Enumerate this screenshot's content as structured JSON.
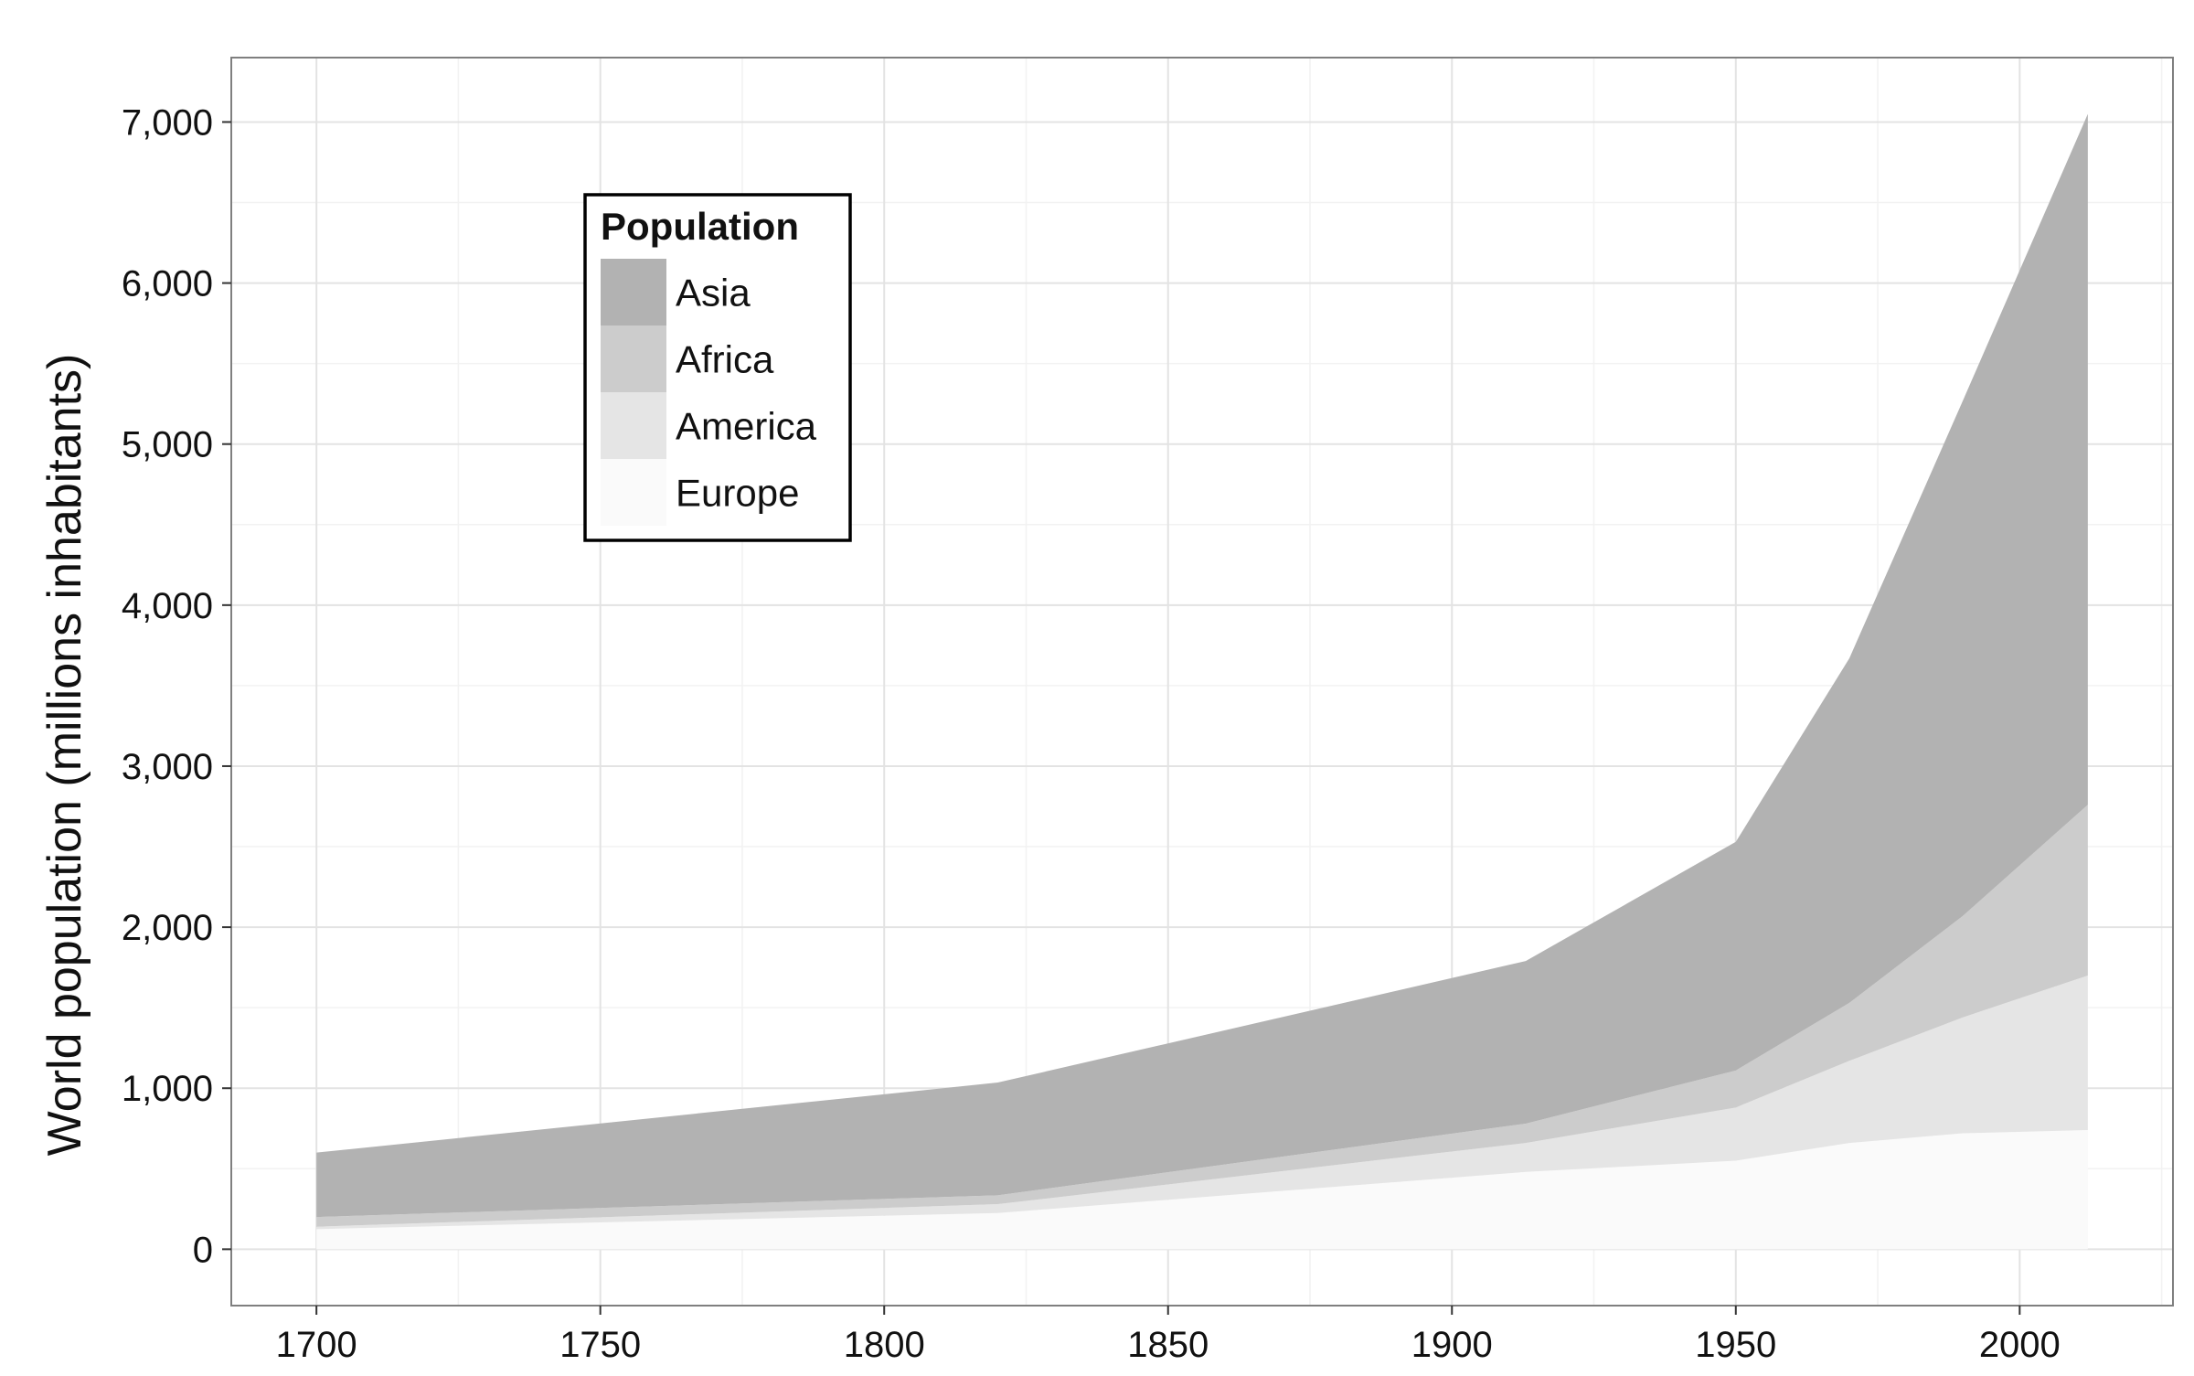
{
  "chart_data": {
    "type": "area",
    "stacked": true,
    "title": "",
    "xlabel": "",
    "ylabel": "World population (millions inhabitants)",
    "xlim": [
      1685,
      2027
    ],
    "ylim": [
      -350,
      7400
    ],
    "xticks": [
      1700,
      1750,
      1800,
      1850,
      1900,
      1950,
      2000
    ],
    "xtick_labels": [
      "1700",
      "1750",
      "1800",
      "1850",
      "1900",
      "1950",
      "2000"
    ],
    "yticks": [
      0,
      1000,
      2000,
      3000,
      4000,
      5000,
      6000,
      7000
    ],
    "ytick_labels": [
      "0",
      "1,000",
      "2,000",
      "3,000",
      "4,000",
      "5,000",
      "6,000",
      "7,000"
    ],
    "grid": true,
    "x": [
      1700,
      1820,
      1913,
      1950,
      1970,
      1990,
      2012
    ],
    "series": [
      {
        "name": "Europe",
        "color": "#fafafa",
        "values": [
          125,
          225,
          480,
          550,
          660,
          720,
          740
        ]
      },
      {
        "name": "America",
        "color": "#e5e5e5",
        "values": [
          15,
          55,
          180,
          330,
          510,
          720,
          960
        ]
      },
      {
        "name": "Africa",
        "color": "#cccccc",
        "values": [
          60,
          55,
          120,
          230,
          360,
          630,
          1060
        ]
      },
      {
        "name": "Asia",
        "color": "#b2b2b2",
        "values": [
          400,
          700,
          1010,
          1420,
          2140,
          3200,
          4290
        ]
      }
    ],
    "legend": {
      "title": "Population",
      "placement": "top-left",
      "items": [
        "Asia",
        "Africa",
        "America",
        "Europe"
      ]
    }
  }
}
